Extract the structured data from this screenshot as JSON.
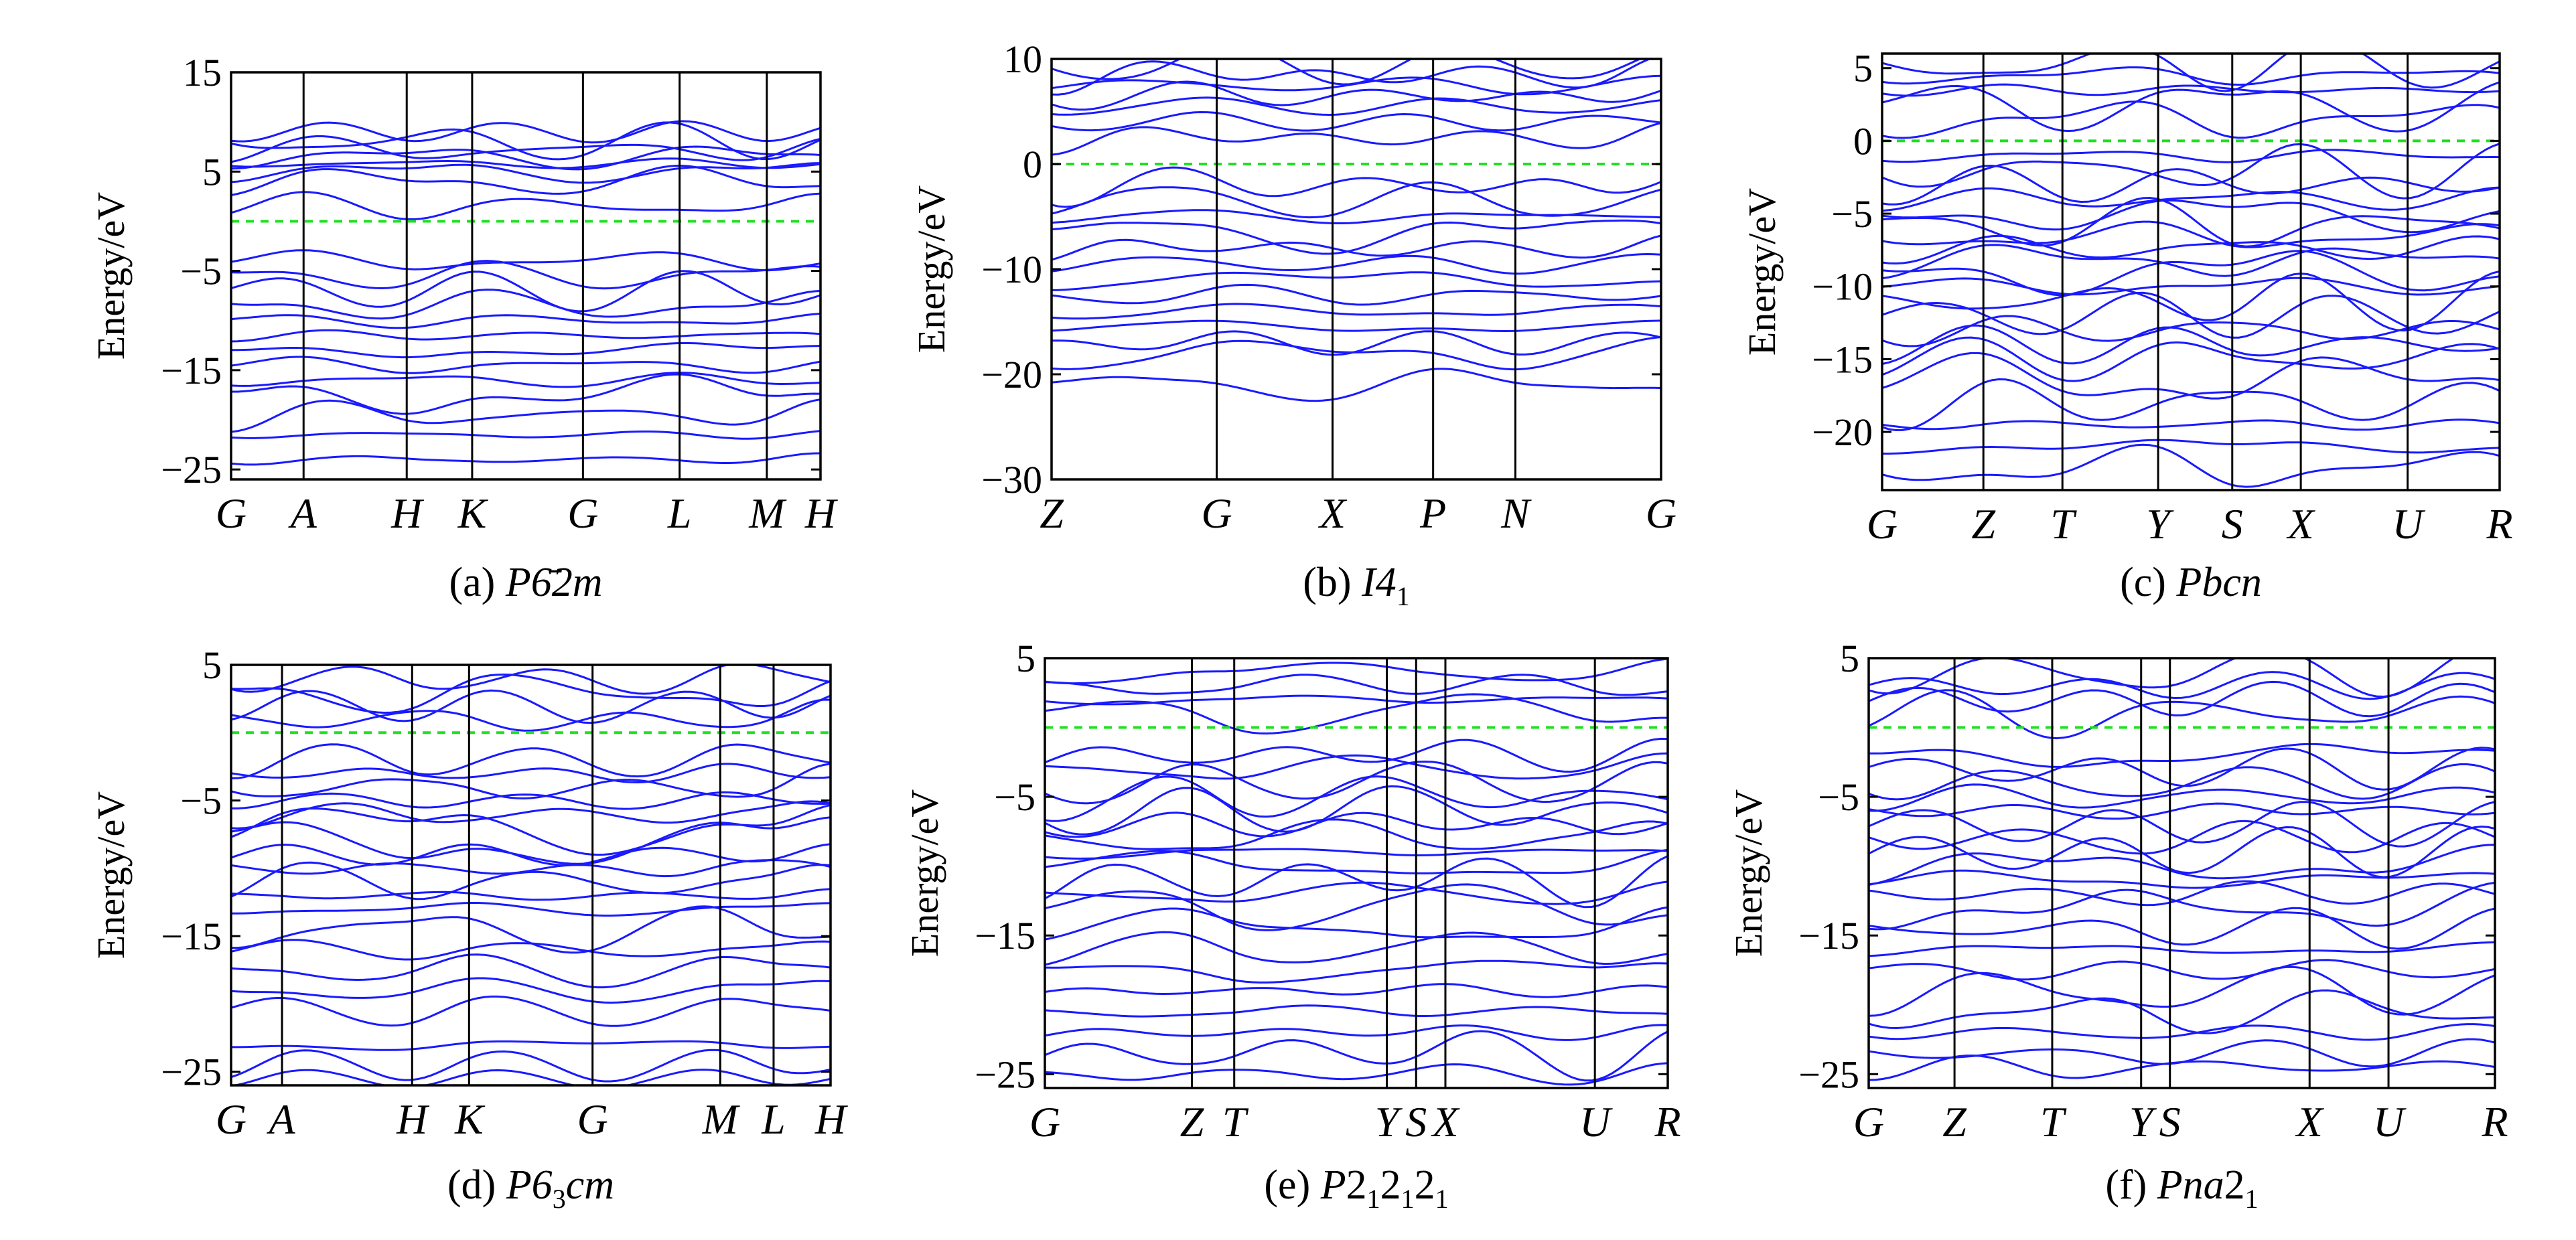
{
  "chart_data": [
    {
      "type": "line",
      "title": "(a) P6̄2m",
      "caption_prefix": "(a) ",
      "caption_name": "P6̄2m",
      "ylabel": "Energy/eV",
      "ylim": [
        -26,
        15
      ],
      "yticks": [
        15,
        5,
        -5,
        -15,
        -25
      ],
      "ytick_labels": [
        "15",
        "5",
        "−5",
        "−15",
        "−25"
      ],
      "kpoints": [
        {
          "label": "G",
          "pos": 0
        },
        {
          "label": "A",
          "pos": 0.123
        },
        {
          "label": "H",
          "pos": 0.298
        },
        {
          "label": "K",
          "pos": 0.409
        },
        {
          "label": "G",
          "pos": 0.597
        },
        {
          "label": "L",
          "pos": 0.761
        },
        {
          "label": "M",
          "pos": 0.909
        },
        {
          "label": "H",
          "pos": 1
        }
      ],
      "fermi_level": 0,
      "bands_above": [
        1.5,
        4,
        5,
        5.8,
        6.5,
        7.2,
        8,
        9
      ],
      "bands_below": [
        -4,
        -5.5,
        -7,
        -8.5,
        -10,
        -11.5,
        -13,
        -14.5,
        -16,
        -17.5,
        -19.5,
        -21.5,
        -24
      ]
    },
    {
      "type": "line",
      "title": "(b) I41",
      "caption_prefix": "(b) ",
      "caption_name": "I4",
      "caption_sub": "1",
      "ylabel": "Energy/eV",
      "ylim": [
        -30,
        10
      ],
      "yticks": [
        10,
        0,
        -10,
        -20,
        -30
      ],
      "ytick_labels": [
        "10",
        "0",
        "−10",
        "−20",
        "−30"
      ],
      "kpoints": [
        {
          "label": "Z",
          "pos": 0
        },
        {
          "label": "G",
          "pos": 0.271
        },
        {
          "label": "X",
          "pos": 0.461
        },
        {
          "label": "P",
          "pos": 0.626
        },
        {
          "label": "N",
          "pos": 0.761
        },
        {
          "label": "G",
          "pos": 1
        }
      ],
      "fermi_level": 0,
      "bands_above": [
        2.5,
        4,
        5.5,
        6.5,
        7.5,
        8.5,
        9.5
      ],
      "bands_below": [
        -2,
        -3.5,
        -5,
        -6.5,
        -8,
        -9.5,
        -11,
        -12.5,
        -14,
        -15.5,
        -17,
        -18,
        -21
      ]
    },
    {
      "type": "line",
      "title": "(c) Pbcn",
      "caption_prefix": "(c) ",
      "caption_name": "Pbcn",
      "ylabel": "Energy/eV",
      "ylim": [
        -24,
        6
      ],
      "yticks": [
        5,
        0,
        -5,
        -10,
        -15,
        -20
      ],
      "ytick_labels": [
        "5",
        "0",
        "−5",
        "−10",
        "−15",
        "−20"
      ],
      "kpoints": [
        {
          "label": "G",
          "pos": 0
        },
        {
          "label": "Z",
          "pos": 0.164
        },
        {
          "label": "T",
          "pos": 0.292
        },
        {
          "label": "Y",
          "pos": 0.447
        },
        {
          "label": "S",
          "pos": 0.567
        },
        {
          "label": "X",
          "pos": 0.678
        },
        {
          "label": "U",
          "pos": 0.851
        },
        {
          "label": "R",
          "pos": 1
        }
      ],
      "fermi_level": 0,
      "bands_above": [
        1.5,
        2.5,
        3.5,
        4.5,
        5.2
      ],
      "bands_below": [
        -1,
        -2,
        -3,
        -4,
        -5,
        -5.8,
        -6.6,
        -7.4,
        -8.2,
        -9,
        -10,
        -11,
        -12,
        -13,
        -14,
        -15,
        -16.5,
        -18,
        -19.5,
        -21,
        -22.5
      ]
    },
    {
      "type": "line",
      "title": "(d) P63cm",
      "caption_prefix": "(d) ",
      "caption_name": "P6",
      "caption_sub": "3",
      "caption_suffix": "cm",
      "ylabel": "Energy/eV",
      "ylim": [
        -26,
        5
      ],
      "yticks": [
        5,
        -5,
        -15,
        -25
      ],
      "ytick_labels": [
        "5",
        "−5",
        "−15",
        "−25"
      ],
      "kpoints": [
        {
          "label": "G",
          "pos": 0
        },
        {
          "label": "A",
          "pos": 0.085
        },
        {
          "label": "H",
          "pos": 0.302
        },
        {
          "label": "K",
          "pos": 0.397
        },
        {
          "label": "G",
          "pos": 0.603
        },
        {
          "label": "M",
          "pos": 0.816
        },
        {
          "label": "L",
          "pos": 0.905
        },
        {
          "label": "H",
          "pos": 1
        }
      ],
      "fermi_level": 0,
      "bands_above": [
        1,
        2,
        3,
        4
      ],
      "bands_below": [
        -2,
        -3,
        -4,
        -5,
        -6,
        -7,
        -8,
        -9,
        -10,
        -11,
        -12,
        -13,
        -14.5,
        -16,
        -17.5,
        -19,
        -20.5,
        -23,
        -24.5,
        -25.5
      ]
    },
    {
      "type": "line",
      "title": "(e) P212121",
      "caption_prefix": "(e) ",
      "caption_name": "P",
      "caption_parts": [
        "2",
        "1",
        "2",
        "1",
        "2",
        "1"
      ],
      "ylabel": "Energy/eV",
      "ylim": [
        -26,
        5
      ],
      "yticks": [
        5,
        -5,
        -15,
        -25
      ],
      "ytick_labels": [
        "5",
        "−5",
        "−15",
        "−25"
      ],
      "kpoints": [
        {
          "label": "G",
          "pos": 0
        },
        {
          "label": "Z",
          "pos": 0.236
        },
        {
          "label": "T",
          "pos": 0.304
        },
        {
          "label": "Y",
          "pos": 0.549
        },
        {
          "label": "S",
          "pos": 0.596
        },
        {
          "label": "X",
          "pos": 0.643
        },
        {
          "label": "U",
          "pos": 0.883
        },
        {
          "label": "R",
          "pos": 1
        }
      ],
      "fermi_level": 0,
      "bands_above": [
        1,
        2,
        3,
        4
      ],
      "bands_below": [
        -2,
        -3,
        -4,
        -5,
        -6,
        -7,
        -8,
        -9,
        -10,
        -11,
        -12,
        -13,
        -14.5,
        -16,
        -17.5,
        -19,
        -20.5,
        -22,
        -23.5,
        -25
      ]
    },
    {
      "type": "line",
      "title": "(f) Pna21",
      "caption_prefix": "(f) ",
      "caption_name": "Pna",
      "caption_parts": [
        "2",
        "1"
      ],
      "ylabel": "Energy/eV",
      "ylim": [
        -26,
        5
      ],
      "yticks": [
        5,
        -5,
        -15,
        -25
      ],
      "ytick_labels": [
        "5",
        "−5",
        "−15",
        "−25"
      ],
      "kpoints": [
        {
          "label": "G",
          "pos": 0
        },
        {
          "label": "Z",
          "pos": 0.137
        },
        {
          "label": "T",
          "pos": 0.293
        },
        {
          "label": "Y",
          "pos": 0.435
        },
        {
          "label": "S",
          "pos": 0.481
        },
        {
          "label": "X",
          "pos": 0.704
        },
        {
          "label": "U",
          "pos": 0.83
        },
        {
          "label": "R",
          "pos": 1
        }
      ],
      "fermi_level": 0,
      "bands_above": [
        1,
        2,
        3,
        4
      ],
      "bands_below": [
        -2,
        -3,
        -4,
        -5,
        -6,
        -7,
        -8,
        -9,
        -10,
        -11,
        -12,
        -13,
        -14.5,
        -16,
        -17.5,
        -19,
        -20.5,
        -22,
        -23.5,
        -24.5
      ]
    }
  ],
  "colors": {
    "band": "#1a1aff",
    "fermi": "#1fe01f",
    "axis": "#000000"
  }
}
